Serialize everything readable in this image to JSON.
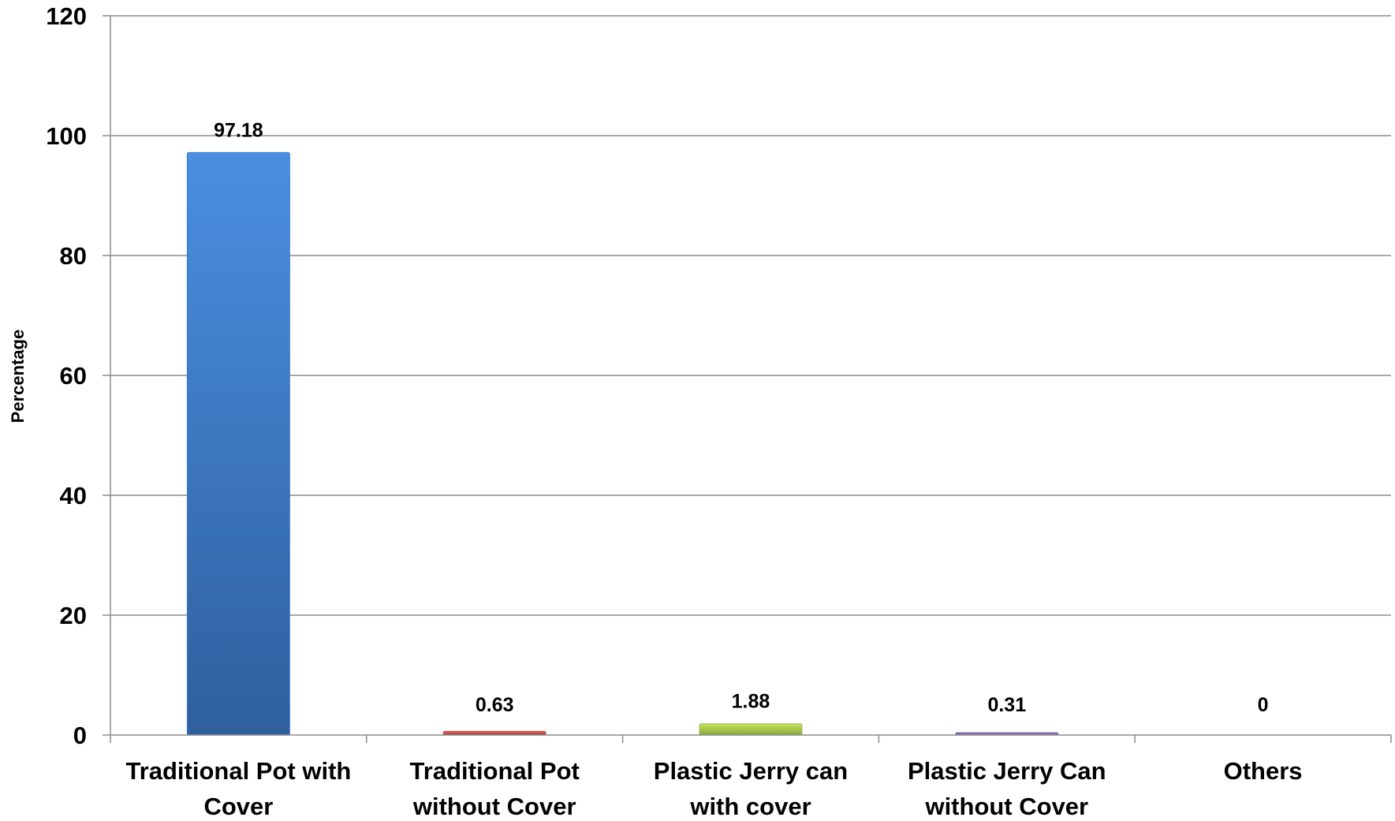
{
  "chart_data": {
    "type": "bar",
    "title": "",
    "xlabel": "",
    "ylabel": "Percentage",
    "ylim": [
      0,
      120
    ],
    "yticks": [
      0,
      20,
      40,
      60,
      80,
      100,
      120
    ],
    "grid": true,
    "legend": "none",
    "categories": [
      [
        "Traditional Pot with",
        "Cover"
      ],
      [
        "Traditional Pot",
        "without Cover"
      ],
      [
        "Plastic Jerry can",
        "with cover"
      ],
      [
        "Plastic Jerry Can",
        "without Cover"
      ],
      [
        "Others"
      ]
    ],
    "values": [
      97.18,
      0.63,
      1.88,
      0.31,
      0
    ],
    "value_labels": [
      "97.18",
      "0.63",
      "1.88",
      "0.31",
      "0"
    ],
    "colors": [
      "#3d7ccf",
      "#c0504d",
      "#9bbb59",
      "#8064a2",
      "#4bacc6"
    ]
  }
}
